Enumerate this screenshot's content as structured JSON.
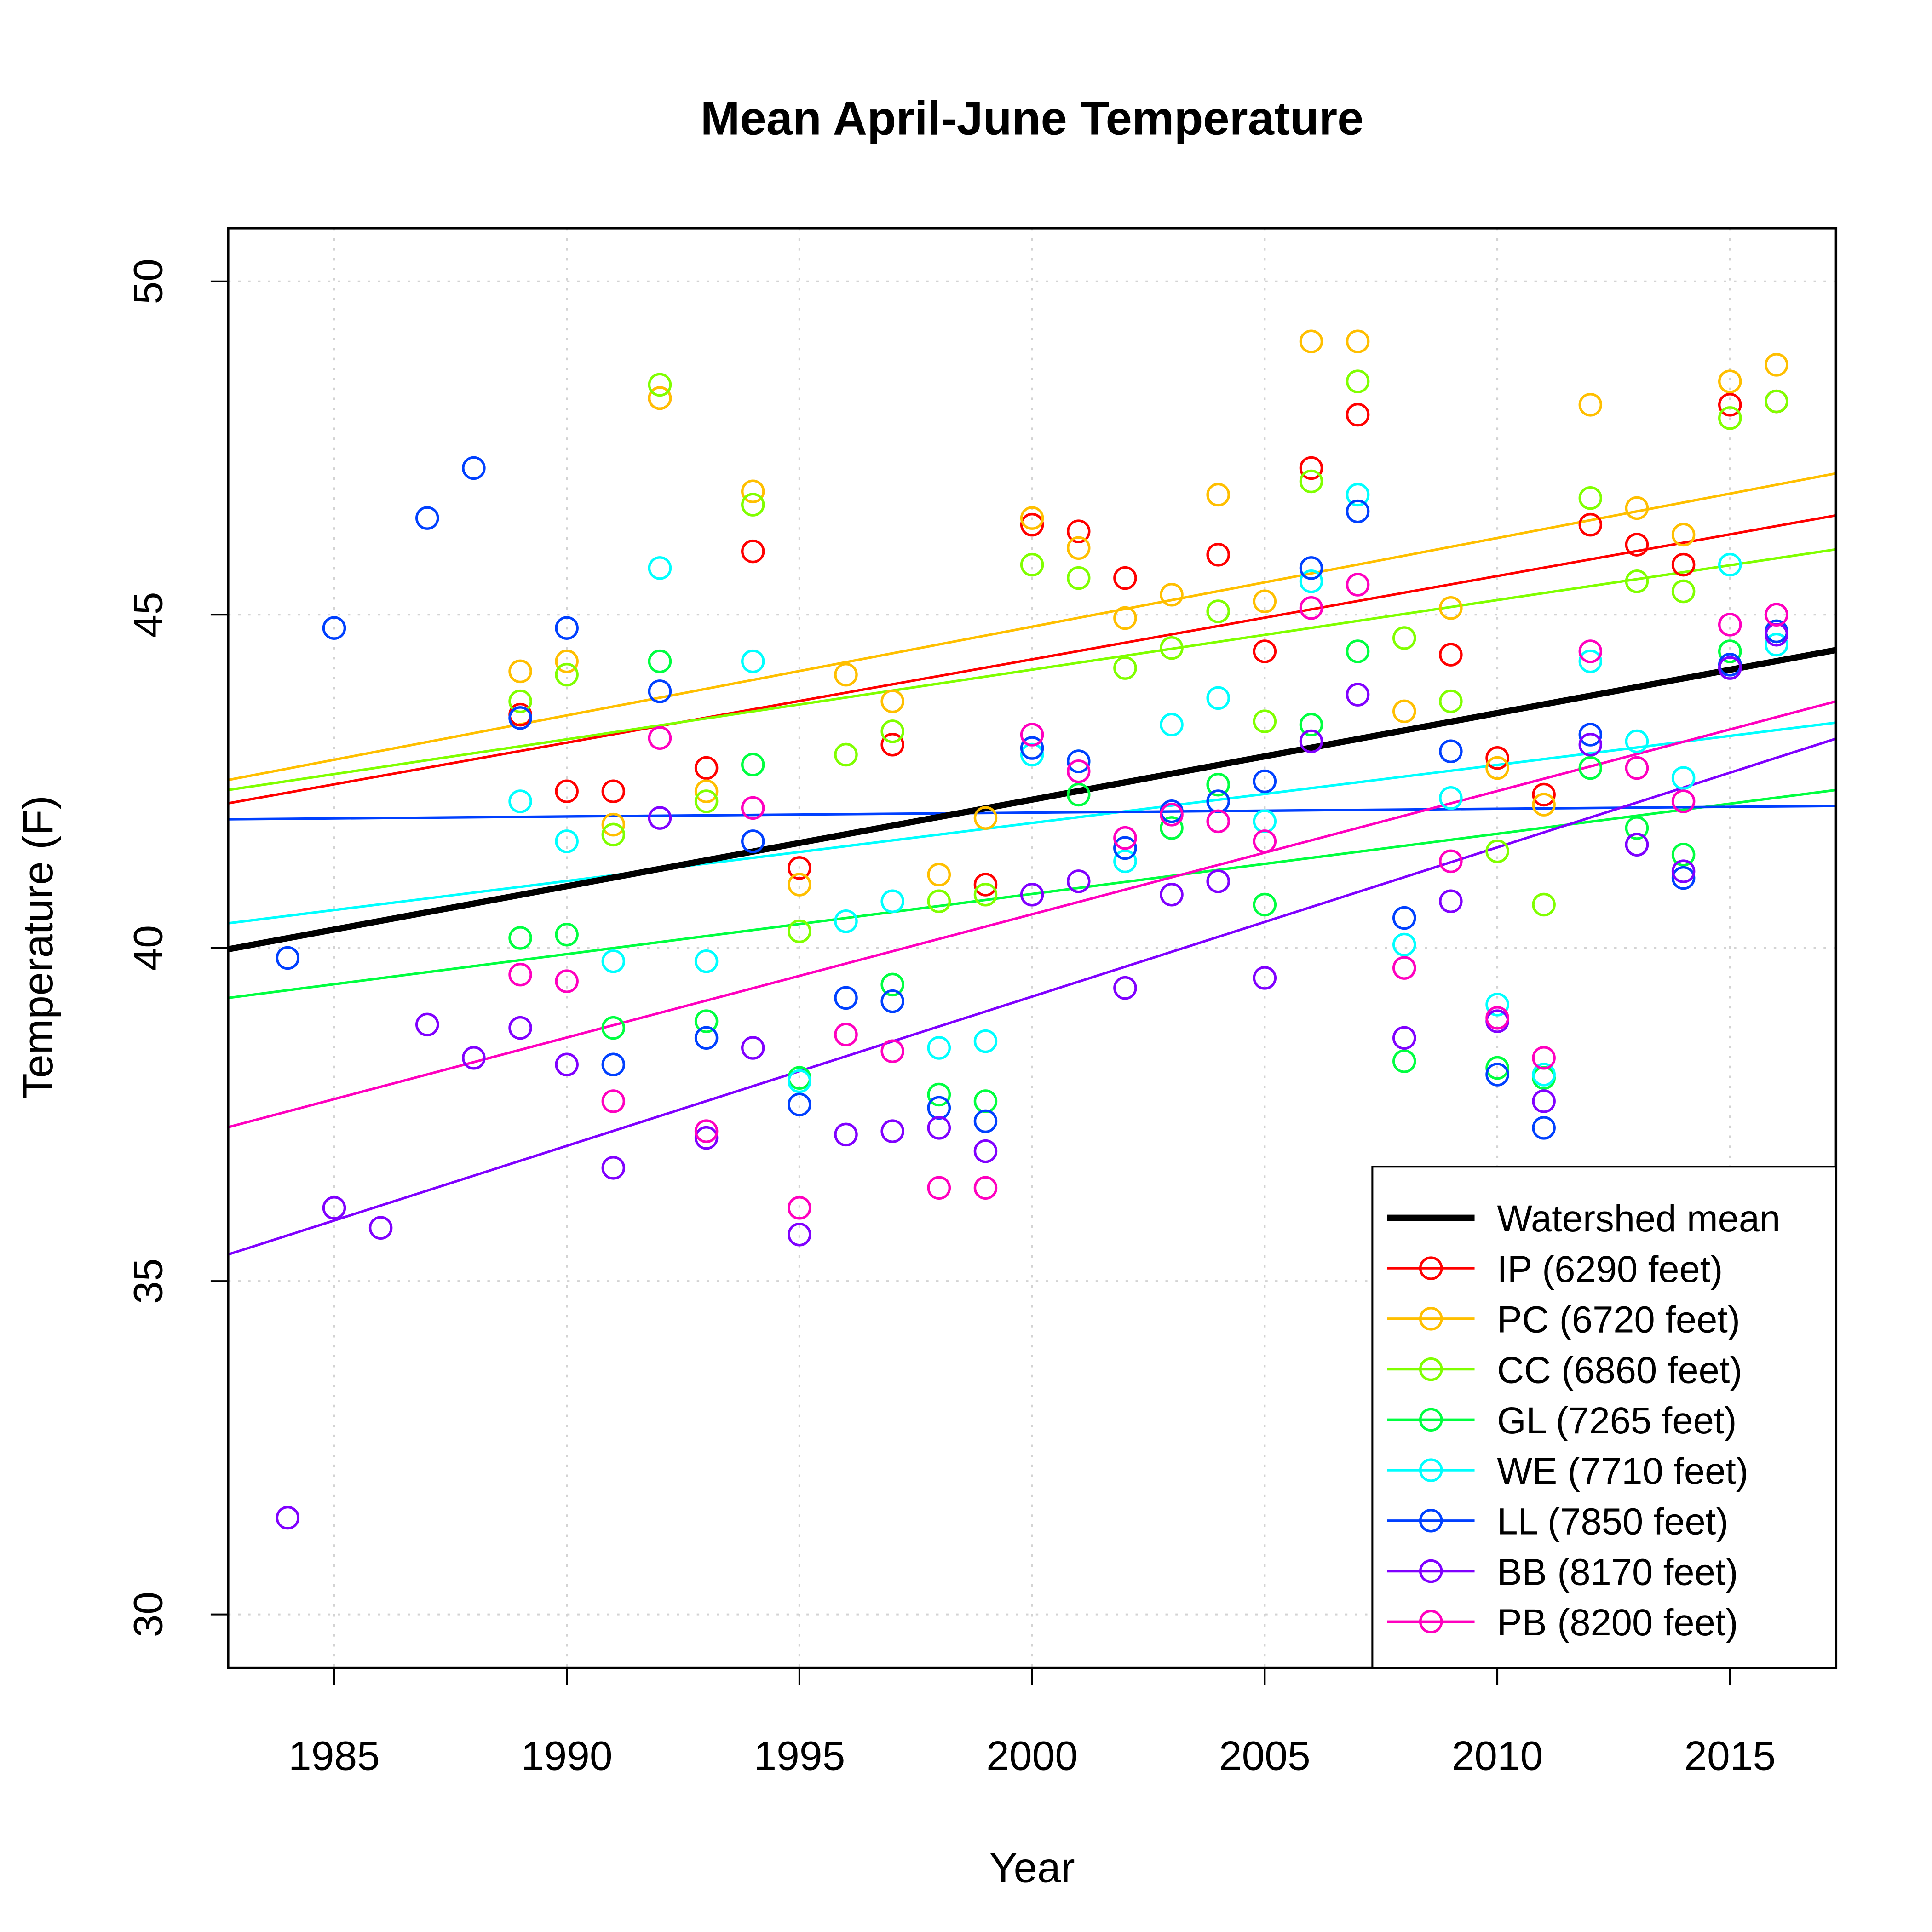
{
  "chart_data": {
    "type": "scatter",
    "title": "Mean April-June Temperature",
    "xlabel": "Year",
    "ylabel": "Temperature (F)",
    "xlim": [
      1982.72,
      2017.28
    ],
    "ylim": [
      29.2,
      50.8
    ],
    "xticks": [
      1985,
      1990,
      1995,
      2000,
      2005,
      2010,
      2015
    ],
    "yticks": [
      30,
      35,
      40,
      45,
      50
    ],
    "grid": true,
    "legend_position": "bottom-right",
    "trend_mean": {
      "name": "Watershed mean",
      "color": "#000000",
      "x": [
        1982.72,
        2017.28
      ],
      "y": [
        39.98,
        44.47
      ]
    },
    "series": [
      {
        "name": "IP (6290 feet)",
        "color": "#FF0000",
        "trend": {
          "x": [
            1982.72,
            2017.28
          ],
          "y": [
            42.17,
            46.49
          ]
        },
        "points": [
          [
            1989,
            43.5
          ],
          [
            1990,
            42.35
          ],
          [
            1991,
            42.35
          ],
          [
            1992,
            48.25
          ],
          [
            1993,
            42.7
          ],
          [
            1994,
            45.95
          ],
          [
            1995,
            41.2
          ],
          [
            1997,
            43.05
          ],
          [
            1999,
            40.95
          ],
          [
            2000,
            46.35
          ],
          [
            2001,
            46.25
          ],
          [
            2002,
            45.55
          ],
          [
            2004,
            45.9
          ],
          [
            2005,
            44.45
          ],
          [
            2006,
            47.2
          ],
          [
            2007,
            48.0
          ],
          [
            2009,
            44.4
          ],
          [
            2010,
            42.85
          ],
          [
            2011,
            42.3
          ],
          [
            2012,
            46.35
          ],
          [
            2013,
            46.05
          ],
          [
            2014,
            45.75
          ],
          [
            2015,
            48.15
          ],
          [
            2016,
            48.2
          ]
        ]
      },
      {
        "name": "PC (6720 feet)",
        "color": "#FFBF00",
        "trend": {
          "x": [
            1982.72,
            2017.28
          ],
          "y": [
            42.52,
            47.12
          ]
        },
        "points": [
          [
            1989,
            44.15
          ],
          [
            1990,
            44.3
          ],
          [
            1991,
            41.85
          ],
          [
            1992,
            48.25
          ],
          [
            1993,
            42.35
          ],
          [
            1994,
            46.85
          ],
          [
            1995,
            40.95
          ],
          [
            1996,
            44.1
          ],
          [
            1997,
            43.7
          ],
          [
            1998,
            41.1
          ],
          [
            1999,
            41.95
          ],
          [
            2000,
            46.45
          ],
          [
            2001,
            46.0
          ],
          [
            2002,
            44.95
          ],
          [
            2003,
            45.3
          ],
          [
            2004,
            46.8
          ],
          [
            2005,
            45.2
          ],
          [
            2006,
            49.1
          ],
          [
            2007,
            49.1
          ],
          [
            2008,
            43.55
          ],
          [
            2009,
            45.1
          ],
          [
            2010,
            42.7
          ],
          [
            2011,
            42.15
          ],
          [
            2012,
            48.15
          ],
          [
            2013,
            46.6
          ],
          [
            2014,
            46.2
          ],
          [
            2015,
            48.5
          ],
          [
            2016,
            48.75
          ]
        ]
      },
      {
        "name": "CC (6860 feet)",
        "color": "#80FF00",
        "trend": {
          "x": [
            1982.72,
            2017.28
          ],
          "y": [
            42.37,
            45.98
          ]
        },
        "points": [
          [
            1989,
            43.7
          ],
          [
            1990,
            44.1
          ],
          [
            1991,
            41.7
          ],
          [
            1992,
            48.45
          ],
          [
            1993,
            42.2
          ],
          [
            1994,
            46.65
          ],
          [
            1995,
            40.25
          ],
          [
            1996,
            42.9
          ],
          [
            1997,
            43.25
          ],
          [
            1998,
            40.7
          ],
          [
            1999,
            40.8
          ],
          [
            2000,
            45.75
          ],
          [
            2001,
            45.55
          ],
          [
            2002,
            44.2
          ],
          [
            2003,
            44.5
          ],
          [
            2004,
            45.05
          ],
          [
            2005,
            43.4
          ],
          [
            2006,
            47.0
          ],
          [
            2007,
            48.5
          ],
          [
            2008,
            44.65
          ],
          [
            2009,
            43.7
          ],
          [
            2010,
            41.45
          ],
          [
            2011,
            40.65
          ],
          [
            2012,
            46.75
          ],
          [
            2013,
            45.5
          ],
          [
            2014,
            45.35
          ],
          [
            2015,
            47.95
          ],
          [
            2016,
            48.2
          ]
        ]
      },
      {
        "name": "GL (7265 feet)",
        "color": "#00FF40",
        "trend": {
          "x": [
            1982.72,
            2017.28
          ],
          "y": [
            39.25,
            42.37
          ]
        },
        "points": [
          [
            1989,
            40.15
          ],
          [
            1990,
            40.2
          ],
          [
            1991,
            38.8
          ],
          [
            1992,
            44.3
          ],
          [
            1993,
            38.9
          ],
          [
            1994,
            42.75
          ],
          [
            1995,
            38.05
          ],
          [
            1997,
            39.45
          ],
          [
            1998,
            37.8
          ],
          [
            1999,
            37.7
          ],
          [
            2001,
            42.3
          ],
          [
            2002,
            41.5
          ],
          [
            2003,
            41.8
          ],
          [
            2004,
            42.45
          ],
          [
            2005,
            40.65
          ],
          [
            2006,
            43.35
          ],
          [
            2007,
            44.45
          ],
          [
            2008,
            38.3
          ],
          [
            2010,
            38.2
          ],
          [
            2011,
            38.05
          ],
          [
            2012,
            42.7
          ],
          [
            2013,
            41.8
          ],
          [
            2014,
            41.4
          ],
          [
            2015,
            44.45
          ],
          [
            2016,
            44.75
          ]
        ]
      },
      {
        "name": "WE (7710 feet)",
        "color": "#00FFFF",
        "trend": {
          "x": [
            1982.72,
            2017.28
          ],
          "y": [
            40.37,
            43.38
          ]
        },
        "points": [
          [
            1989,
            42.2
          ],
          [
            1990,
            41.6
          ],
          [
            1991,
            39.8
          ],
          [
            1992,
            45.7
          ],
          [
            1993,
            39.8
          ],
          [
            1994,
            44.3
          ],
          [
            1995,
            38.0
          ],
          [
            1996,
            40.4
          ],
          [
            1997,
            40.7
          ],
          [
            1998,
            38.5
          ],
          [
            1999,
            38.6
          ],
          [
            2000,
            42.9
          ],
          [
            2001,
            42.8
          ],
          [
            2002,
            41.3
          ],
          [
            2003,
            43.35
          ],
          [
            2004,
            43.75
          ],
          [
            2005,
            41.9
          ],
          [
            2006,
            45.5
          ],
          [
            2007,
            46.8
          ],
          [
            2008,
            40.05
          ],
          [
            2009,
            42.25
          ],
          [
            2010,
            39.15
          ],
          [
            2011,
            38.1
          ],
          [
            2012,
            44.3
          ],
          [
            2013,
            43.1
          ],
          [
            2014,
            42.55
          ],
          [
            2015,
            45.75
          ],
          [
            2016,
            44.55
          ]
        ]
      },
      {
        "name": "LL (7850 feet)",
        "color": "#0040FF",
        "trend": {
          "x": [
            1982.72,
            2017.28
          ],
          "y": [
            41.93,
            42.13
          ]
        },
        "points": [
          [
            1984,
            39.85
          ],
          [
            1985,
            44.8
          ],
          [
            1987,
            46.45
          ],
          [
            1988,
            47.2
          ],
          [
            1989,
            43.45
          ],
          [
            1990,
            44.8
          ],
          [
            1991,
            38.25
          ],
          [
            1992,
            43.85
          ],
          [
            1993,
            38.65
          ],
          [
            1994,
            41.6
          ],
          [
            1995,
            37.65
          ],
          [
            1996,
            39.25
          ],
          [
            1997,
            39.2
          ],
          [
            1998,
            37.6
          ],
          [
            1999,
            37.4
          ],
          [
            2000,
            43.0
          ],
          [
            2001,
            42.8
          ],
          [
            2002,
            41.5
          ],
          [
            2003,
            42.05
          ],
          [
            2004,
            42.2
          ],
          [
            2005,
            42.5
          ],
          [
            2006,
            45.7
          ],
          [
            2007,
            46.55
          ],
          [
            2008,
            40.45
          ],
          [
            2009,
            42.95
          ],
          [
            2010,
            38.1
          ],
          [
            2011,
            37.3
          ],
          [
            2012,
            43.2
          ],
          [
            2013,
            41.55
          ],
          [
            2014,
            41.05
          ],
          [
            2015,
            44.25
          ],
          [
            2016,
            44.75
          ]
        ]
      },
      {
        "name": "BB (8170 feet)",
        "color": "#8000FF",
        "trend": {
          "x": [
            1982.72,
            2017.28
          ],
          "y": [
            35.4,
            43.14
          ]
        },
        "points": [
          [
            1984,
            31.45
          ],
          [
            1985,
            36.1
          ],
          [
            1986,
            35.8
          ],
          [
            1987,
            38.85
          ],
          [
            1988,
            38.35
          ],
          [
            1989,
            38.8
          ],
          [
            1990,
            38.25
          ],
          [
            1991,
            36.7
          ],
          [
            1992,
            41.95
          ],
          [
            1993,
            37.15
          ],
          [
            1994,
            38.5
          ],
          [
            1995,
            35.7
          ],
          [
            1996,
            37.2
          ],
          [
            1997,
            37.25
          ],
          [
            1998,
            37.3
          ],
          [
            1999,
            36.95
          ],
          [
            2000,
            40.8
          ],
          [
            2001,
            41.0
          ],
          [
            2002,
            39.4
          ],
          [
            2003,
            40.8
          ],
          [
            2004,
            41.0
          ],
          [
            2005,
            39.55
          ],
          [
            2006,
            43.1
          ],
          [
            2007,
            43.8
          ],
          [
            2008,
            38.65
          ],
          [
            2009,
            40.7
          ],
          [
            2010,
            38.9
          ],
          [
            2011,
            37.7
          ],
          [
            2012,
            43.05
          ],
          [
            2013,
            41.55
          ],
          [
            2014,
            41.15
          ],
          [
            2015,
            44.2
          ],
          [
            2016,
            44.7
          ]
        ]
      },
      {
        "name": "PB (8200 feet)",
        "color": "#FF00BF",
        "trend": {
          "x": [
            1982.72,
            2017.28
          ],
          "y": [
            37.31,
            43.7
          ]
        },
        "points": [
          [
            1989,
            39.6
          ],
          [
            1990,
            39.5
          ],
          [
            1991,
            37.7
          ],
          [
            1992,
            43.15
          ],
          [
            1993,
            37.25
          ],
          [
            1994,
            42.1
          ],
          [
            1995,
            36.1
          ],
          [
            1996,
            38.7
          ],
          [
            1997,
            38.45
          ],
          [
            1998,
            36.4
          ],
          [
            1999,
            36.4
          ],
          [
            2000,
            43.2
          ],
          [
            2001,
            42.65
          ],
          [
            2002,
            41.65
          ],
          [
            2003,
            42.0
          ],
          [
            2004,
            41.9
          ],
          [
            2005,
            41.6
          ],
          [
            2006,
            45.1
          ],
          [
            2007,
            45.45
          ],
          [
            2008,
            39.7
          ],
          [
            2009,
            41.3
          ],
          [
            2010,
            38.95
          ],
          [
            2011,
            38.35
          ],
          [
            2012,
            44.45
          ],
          [
            2013,
            42.7
          ],
          [
            2014,
            42.2
          ],
          [
            2015,
            44.85
          ],
          [
            2016,
            45.0
          ]
        ]
      }
    ],
    "legend": [
      {
        "label": "Watershed mean",
        "color": "#000000",
        "marker": "line-thick"
      },
      {
        "label": "IP (6290 feet)",
        "color": "#FF0000",
        "marker": "line-circle"
      },
      {
        "label": "PC (6720 feet)",
        "color": "#FFBF00",
        "marker": "line-circle"
      },
      {
        "label": "CC (6860 feet)",
        "color": "#80FF00",
        "marker": "line-circle"
      },
      {
        "label": "GL (7265 feet)",
        "color": "#00FF40",
        "marker": "line-circle"
      },
      {
        "label": "WE (7710 feet)",
        "color": "#00FFFF",
        "marker": "line-circle"
      },
      {
        "label": "LL (7850 feet)",
        "color": "#0040FF",
        "marker": "line-circle"
      },
      {
        "label": "BB (8170 feet)",
        "color": "#8000FF",
        "marker": "line-circle"
      },
      {
        "label": "PB (8200 feet)",
        "color": "#FF00BF",
        "marker": "line-circle"
      }
    ]
  }
}
